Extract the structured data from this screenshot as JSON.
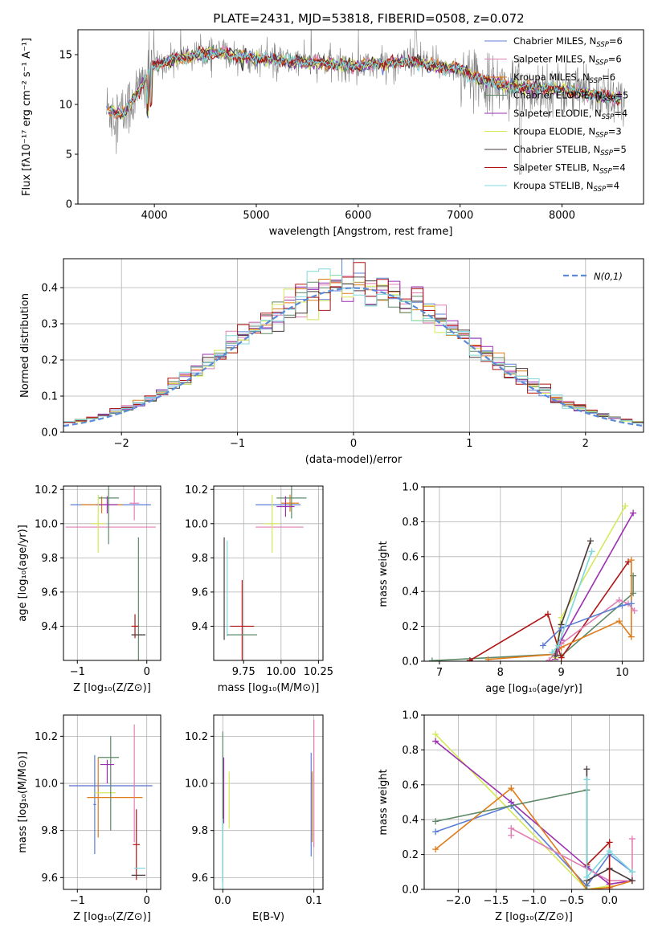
{
  "chart_data": [
    {
      "id": "spectrum",
      "type": "line",
      "title": "PLATE=2431, MJD=53818, FIBERID=0508, z=0.072",
      "xlabel": "wavelength [Angstrom, rest frame]",
      "ylabel": "Flux [fλ10⁻¹⁷ erg cm⁻² s⁻¹ A⁻¹]",
      "xlim": [
        3250,
        8800
      ],
      "ylim": [
        0,
        17.5
      ],
      "xticks": [
        "4000",
        "5000",
        "6000",
        "7000",
        "8000"
      ],
      "yticks": [
        "0",
        "5",
        "10",
        "15"
      ],
      "grid": false,
      "legend_position": "upper-right",
      "legend": [
        {
          "label": "Chabrier MILES, N",
          "sub": "SSP",
          "suffix": "=6",
          "color": "#5b7fd6"
        },
        {
          "label": "Salpeter MILES, N",
          "sub": "SSP",
          "suffix": "=6",
          "color": "#e07fb5"
        },
        {
          "label": "Kroupa MILES, N",
          "sub": "SSP",
          "suffix": "=6",
          "color": "#e07b1a"
        },
        {
          "label": "Chabrier ELODIE, N",
          "sub": "SSP",
          "suffix": "=5",
          "color": "#5e8a68"
        },
        {
          "label": "Salpeter ELODIE, N",
          "sub": "SSP",
          "suffix": "=4",
          "color": "#9a2fb0"
        },
        {
          "label": "Kroupa ELODIE, N",
          "sub": "SSP",
          "suffix": "=3",
          "color": "#d4e85a"
        },
        {
          "label": "Chabrier STELIB, N",
          "sub": "SSP",
          "suffix": "=5",
          "color": "#4a3a3a"
        },
        {
          "label": "Salpeter STELIB, N",
          "sub": "SSP",
          "suffix": "=4",
          "color": "#b01515"
        },
        {
          "label": "Kroupa STELIB, N",
          "sub": "SSP",
          "suffix": "=4",
          "color": "#7fd8dc"
        }
      ],
      "continuum_anchors": [
        [
          3530,
          9.5
        ],
        [
          3700,
          9.0
        ],
        [
          3850,
          11.5
        ],
        [
          4000,
          14.0
        ],
        [
          4300,
          14.8
        ],
        [
          4600,
          15.2
        ],
        [
          5000,
          14.6
        ],
        [
          5500,
          14.2
        ],
        [
          6000,
          13.9
        ],
        [
          6500,
          14.3
        ],
        [
          7000,
          13.5
        ],
        [
          7200,
          12.5
        ],
        [
          7500,
          11.8
        ],
        [
          8000,
          11.5
        ],
        [
          8300,
          11.0
        ],
        [
          8600,
          10.5
        ]
      ]
    },
    {
      "id": "residuals",
      "type": "line",
      "xlabel": "(data-model)/error",
      "ylabel": "Normed distribution",
      "xlim": [
        -2.5,
        2.5
      ],
      "ylim": [
        0,
        0.48
      ],
      "xticks": [
        "−2",
        "−1",
        "0",
        "1",
        "2"
      ],
      "yticks": [
        "0.0",
        "0.1",
        "0.2",
        "0.3",
        "0.4"
      ],
      "grid": true,
      "legend_position": "upper-right",
      "legend_label": "N(0,1)",
      "gaussian_color": "#5b8bd6"
    },
    {
      "id": "Z-age",
      "type": "scatter",
      "xlabel": "Z [log₁₀(Z/Z⊙)]",
      "ylabel": "age  [log₁₀(age/yr)]",
      "xlim": [
        -1.2,
        0.2
      ],
      "ylim": [
        9.2,
        10.22
      ],
      "xticks": [
        "−1",
        "0"
      ],
      "yticks": [
        "9.4",
        "9.6",
        "9.8",
        "10.0",
        "10.2"
      ],
      "grid": true,
      "errorbars": [
        {
          "x": -0.52,
          "xerr": 0.58,
          "y": 10.11,
          "yerr": 0.0,
          "color": "#5b7fd6"
        },
        {
          "x": -0.52,
          "xerr": 0.65,
          "y": 9.98,
          "yerr": 0.0,
          "color": "#e07fb5"
        },
        {
          "x": -0.65,
          "xerr": 0.3,
          "y": 10.11,
          "yerr": 0.05,
          "color": "#e07b1a"
        },
        {
          "x": -0.55,
          "xerr": 0.15,
          "y": 10.15,
          "yerr": 0.27,
          "color": "#5e8a68"
        },
        {
          "x": -0.57,
          "xerr": 0.15,
          "y": 10.11,
          "yerr": 0.05,
          "color": "#9a2fb0"
        },
        {
          "x": -0.7,
          "xerr": 0.1,
          "y": 10.0,
          "yerr": 0.17,
          "color": "#d4e85a"
        },
        {
          "x": -0.18,
          "xerr": 0.07,
          "y": 10.12,
          "yerr": 0.1,
          "color": "#e07fb5"
        },
        {
          "x": -0.12,
          "xerr": 0.1,
          "y": 9.35,
          "yerr": 0.57,
          "color": "#5e8a68"
        },
        {
          "x": -0.17,
          "xerr": 0.05,
          "y": 9.4,
          "yerr": 0.07,
          "color": "#b01515"
        },
        {
          "x": -0.12,
          "xerr": 0.1,
          "y": 9.35,
          "yerr": 0.0,
          "color": "#4a3a3a"
        }
      ]
    },
    {
      "id": "mass-age",
      "type": "scatter",
      "xlabel": "mass [log₁₀(M/M⊙)]",
      "ylabel": "",
      "xlim": [
        9.55,
        10.28
      ],
      "ylim": [
        9.2,
        10.22
      ],
      "xticks": [
        "9.75",
        "10.00",
        "10.25"
      ],
      "yticks": [
        "9.4",
        "9.6",
        "9.8",
        "10.0",
        "10.2"
      ],
      "grid": true,
      "errorbars": [
        {
          "x": 9.98,
          "xerr": 0.15,
          "y": 10.11,
          "yerr": 0.0,
          "color": "#5b7fd6"
        },
        {
          "x": 9.99,
          "xerr": 0.16,
          "y": 9.98,
          "yerr": 0.0,
          "color": "#e07fb5"
        },
        {
          "x": 10.06,
          "xerr": 0.06,
          "y": 10.12,
          "yerr": 0.05,
          "color": "#e07b1a"
        },
        {
          "x": 10.07,
          "xerr": 0.1,
          "y": 10.15,
          "yerr": 0.12,
          "color": "#5e8a68"
        },
        {
          "x": 10.03,
          "xerr": 0.06,
          "y": 10.1,
          "yerr": 0.06,
          "color": "#9a2fb0"
        },
        {
          "x": 9.94,
          "xerr": 0.05,
          "y": 10.0,
          "yerr": 0.17,
          "color": "#d4e85a"
        },
        {
          "x": 9.62,
          "xerr": 0.0,
          "y": 9.62,
          "yerr": 0.3,
          "color": "#4a3a3a"
        },
        {
          "x": 9.64,
          "xerr": 0.0,
          "y": 9.62,
          "yerr": 0.28,
          "color": "#7fd8dc"
        },
        {
          "x": 9.74,
          "xerr": 0.08,
          "y": 9.4,
          "yerr": 0.27,
          "color": "#b01515"
        },
        {
          "x": 9.74,
          "xerr": 0.1,
          "y": 9.35,
          "yerr": 0.0,
          "color": "#5e8a68"
        }
      ]
    },
    {
      "id": "age-weight",
      "type": "line",
      "xlabel": "age  [log₁₀(age/yr)]",
      "ylabel": "mass weight",
      "xlim": [
        6.75,
        10.35
      ],
      "ylim": [
        0,
        1.0
      ],
      "xticks": [
        "7",
        "8",
        "9",
        "10"
      ],
      "yticks": [
        "0.0",
        "0.2",
        "0.4",
        "0.6",
        "0.8",
        "1.0"
      ],
      "grid": true,
      "series": [
        {
          "color": "#5e8a68",
          "x": [
            6.88,
            8.9,
            9.0,
            10.18,
            10.18
          ],
          "y": [
            0.003,
            0.04,
            0.03,
            0.39,
            0.49
          ]
        },
        {
          "color": "#b01515",
          "x": [
            7.5,
            8.78,
            9.0,
            10.1
          ],
          "y": [
            0.004,
            0.27,
            0.02,
            0.57
          ]
        },
        {
          "color": "#e07b1a",
          "x": [
            7.8,
            8.9,
            9.0,
            9.95,
            10.15,
            10.15
          ],
          "y": [
            0.01,
            0.04,
            0.08,
            0.23,
            0.14,
            0.58
          ]
        },
        {
          "color": "#9a2fb0",
          "x": [
            8.9,
            9.0,
            10.18
          ],
          "y": [
            0.01,
            0.12,
            0.85
          ]
        },
        {
          "color": "#d4e85a",
          "x": [
            8.9,
            9.0,
            10.05
          ],
          "y": [
            0.02,
            0.25,
            0.89
          ]
        },
        {
          "color": "#e07fb5",
          "x": [
            8.8,
            9.0,
            9.95,
            10.1,
            10.2
          ],
          "y": [
            0.005,
            0.1,
            0.35,
            0.33,
            0.29
          ]
        },
        {
          "color": "#4a3a3a",
          "x": [
            8.9,
            9.0,
            9.48
          ],
          "y": [
            0.03,
            0.21,
            0.69
          ]
        },
        {
          "color": "#5b7fd6",
          "x": [
            8.7,
            9.0,
            10.0,
            10.15
          ],
          "y": [
            0.09,
            0.19,
            0.32,
            0.33
          ]
        },
        {
          "color": "#7fd8dc",
          "x": [
            8.85,
            8.95,
            9.5
          ],
          "y": [
            0.05,
            0.09,
            0.63
          ]
        }
      ]
    },
    {
      "id": "Z-mass",
      "type": "scatter",
      "xlabel": "Z [log₁₀(Z/Z⊙)]",
      "ylabel": "mass [log₁₀(M/M⊙)]",
      "xlim": [
        -1.2,
        0.2
      ],
      "ylim": [
        9.55,
        10.29
      ],
      "xticks": [
        "−1",
        "0"
      ],
      "yticks": [
        "9.6",
        "9.8",
        "10.0",
        "10.2"
      ],
      "grid": true,
      "errorbars": [
        {
          "x": -0.52,
          "xerr": 0.6,
          "y": 9.99,
          "yerr": 0.0,
          "color": "#e07fb5"
        },
        {
          "x": -0.52,
          "xerr": 0.6,
          "y": 9.99,
          "yerr": 0.0,
          "color": "#5b7fd6"
        },
        {
          "x": -0.75,
          "xerr": 0.02,
          "y": 9.91,
          "yerr": 0.21,
          "color": "#5b7fd6"
        },
        {
          "x": -0.46,
          "xerr": 0.4,
          "y": 9.94,
          "yerr": 0.0,
          "color": "#e07b1a"
        },
        {
          "x": -0.7,
          "xerr": 0.0,
          "y": 9.94,
          "yerr": 0.17,
          "color": "#e07b1a"
        },
        {
          "x": -0.6,
          "xerr": 0.15,
          "y": 9.96,
          "yerr": 0.0,
          "color": "#d4e85a"
        },
        {
          "x": -0.55,
          "xerr": 0.15,
          "y": 10.11,
          "yerr": 0.0,
          "color": "#5e8a68"
        },
        {
          "x": -0.52,
          "xerr": 0.0,
          "y": 10.0,
          "yerr": 0.2,
          "color": "#5e8a68"
        },
        {
          "x": -0.57,
          "xerr": 0.1,
          "y": 10.08,
          "yerr": 0.0,
          "color": "#9a2fb0"
        },
        {
          "x": -0.57,
          "xerr": 0.0,
          "y": 10.05,
          "yerr": 0.05,
          "color": "#9a2fb0"
        },
        {
          "x": -0.18,
          "xerr": 0.0,
          "y": 10.0,
          "yerr": 0.25,
          "color": "#e07fb5"
        },
        {
          "x": -0.15,
          "xerr": 0.05,
          "y": 9.74,
          "yerr": 0.15,
          "color": "#b01515"
        },
        {
          "x": -0.12,
          "xerr": 0.1,
          "y": 9.61,
          "yerr": 0.0,
          "color": "#4a3a3a"
        },
        {
          "x": -0.1,
          "xerr": 0.08,
          "y": 9.64,
          "yerr": 0.0,
          "color": "#7fd8dc"
        }
      ]
    },
    {
      "id": "EBV-mass",
      "type": "scatter",
      "xlabel": "E(B-V)",
      "ylabel": "",
      "xlim": [
        -0.01,
        0.11
      ],
      "ylim": [
        9.55,
        10.29
      ],
      "xticks": [
        "0.0",
        "0.1"
      ],
      "yticks": [
        "9.6",
        "9.8",
        "10.0",
        "10.2"
      ],
      "grid": true,
      "errorbars": [
        {
          "x": 0.0,
          "xerr": 0.0,
          "y": 9.9,
          "yerr": 0.32,
          "color": "#5e8a68"
        },
        {
          "x": 0.001,
          "xerr": 0.0,
          "y": 9.97,
          "yerr": 0.14,
          "color": "#9a2fb0"
        },
        {
          "x": 0.0,
          "xerr": 0.0,
          "y": 9.7,
          "yerr": 0.15,
          "color": "#7fd8dc"
        },
        {
          "x": 0.007,
          "xerr": 0.0,
          "y": 9.93,
          "yerr": 0.12,
          "color": "#d4e85a"
        },
        {
          "x": 0.097,
          "xerr": 0.0,
          "y": 9.91,
          "yerr": 0.22,
          "color": "#5b7fd6"
        },
        {
          "x": 0.1,
          "xerr": 0.0,
          "y": 10.0,
          "yerr": 0.27,
          "color": "#e07fb5"
        },
        {
          "x": 0.098,
          "xerr": 0.0,
          "y": 9.9,
          "yerr": 0.15,
          "color": "#e07b1a"
        }
      ]
    },
    {
      "id": "Z-weight",
      "type": "line",
      "xlabel": "Z [log₁₀(Z/Z⊙)]",
      "ylabel": "mass weight",
      "xlim": [
        -2.45,
        0.45
      ],
      "ylim": [
        0,
        1.0
      ],
      "xticks": [
        "−2.0",
        "−1.5",
        "−1.0",
        "−0.5",
        "0.0"
      ],
      "yticks": [
        "0.0",
        "0.2",
        "0.4",
        "0.6",
        "0.8",
        "1.0"
      ],
      "grid": true,
      "series": [
        {
          "color": "#d4e85a",
          "x": [
            -2.3,
            -0.3,
            0.0
          ],
          "y": [
            0.89,
            0.0,
            0.02
          ]
        },
        {
          "color": "#9a2fb0",
          "x": [
            -2.3,
            -1.3,
            -0.3,
            0.0,
            0.3
          ],
          "y": [
            0.85,
            0.5,
            0.13,
            0.03,
            0.05
          ]
        },
        {
          "color": "#5b7fd6",
          "x": [
            -2.3,
            -1.3,
            -0.3,
            0.0,
            0.3
          ],
          "y": [
            0.33,
            0.48,
            0.02,
            0.2,
            0.1
          ]
        },
        {
          "color": "#e07b1a",
          "x": [
            -2.3,
            -1.3,
            -0.3,
            0.0,
            0.3
          ],
          "y": [
            0.23,
            0.58,
            0.0,
            0.01,
            0.05
          ]
        },
        {
          "color": "#5e8a68",
          "x": [
            -2.3,
            -0.3,
            -0.3
          ],
          "y": [
            0.39,
            0.57,
            0.0
          ]
        },
        {
          "color": "#e07fb5",
          "x": [
            -1.3,
            -1.3,
            0.0,
            0.3,
            0.3
          ],
          "y": [
            0.31,
            0.35,
            0.05,
            0.05,
            0.29
          ]
        },
        {
          "color": "#4a3a3a",
          "x": [
            -0.3,
            -0.3,
            0.0,
            0.3
          ],
          "y": [
            0.69,
            0.05,
            0.12,
            0.05
          ]
        },
        {
          "color": "#b01515",
          "x": [
            -0.3,
            0.0,
            0.0
          ],
          "y": [
            0.14,
            0.27,
            0.0
          ]
        },
        {
          "color": "#7fd8dc",
          "x": [
            -0.3,
            -0.3,
            0.0,
            0.3
          ],
          "y": [
            0.63,
            0.07,
            0.22,
            0.1
          ]
        }
      ]
    }
  ]
}
